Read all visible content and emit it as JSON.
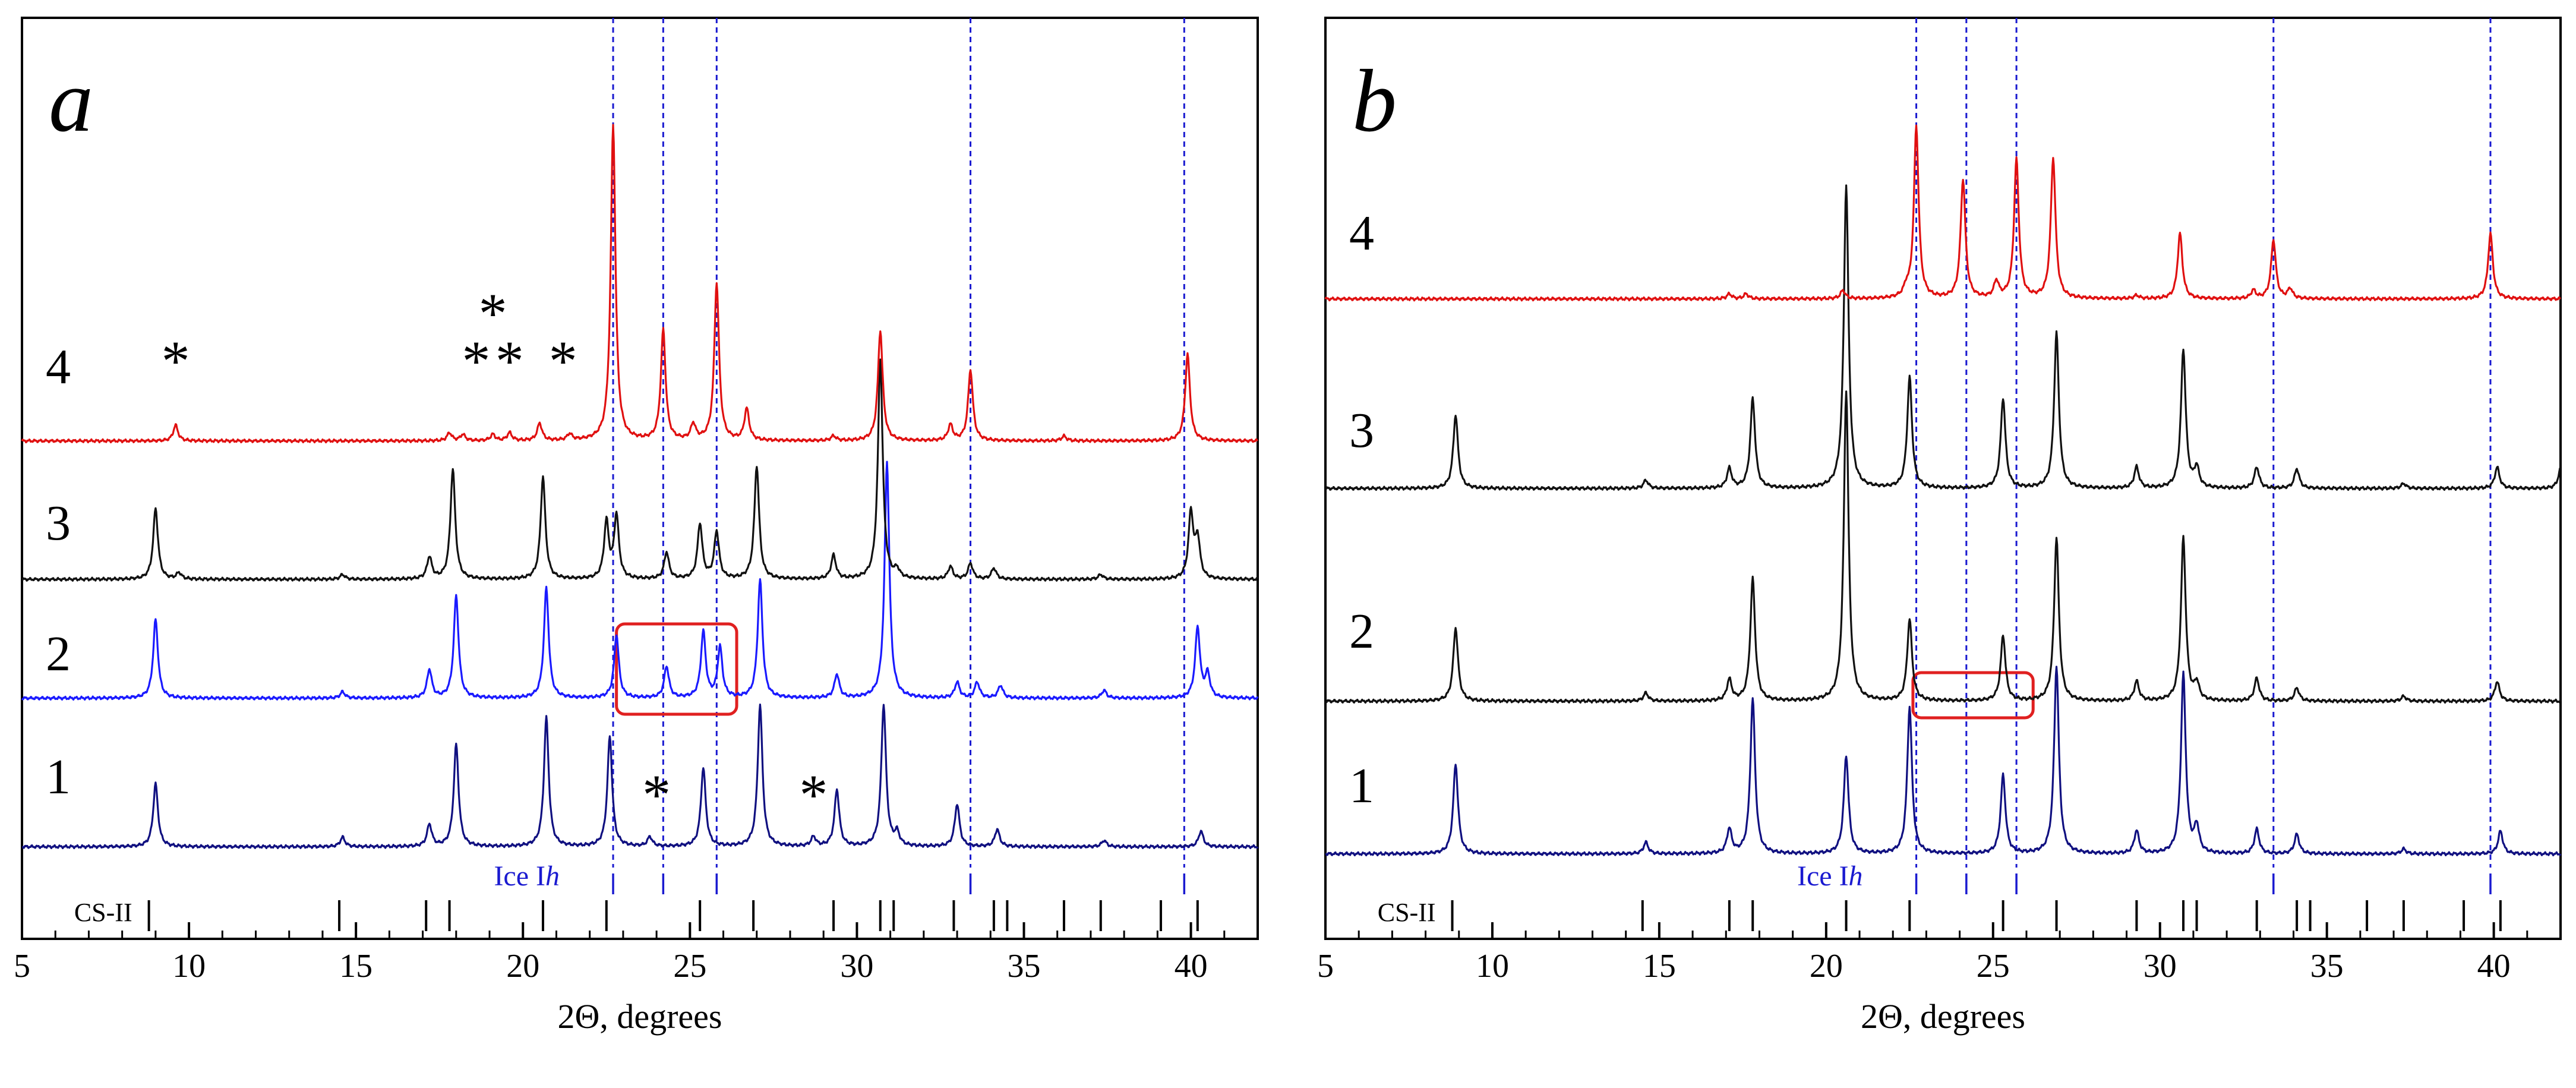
{
  "figure": {
    "axis_title": "2Θ, degrees",
    "x_ticks": [
      5,
      10,
      15,
      20,
      25,
      30,
      35,
      40
    ],
    "ice_label_prefix": "Ice I",
    "ice_label_italic": "h",
    "cs_label": "CS-II",
    "colors": {
      "black": "#111111",
      "blue": "#1a1aff",
      "navy": "#101080",
      "red": "#e01010",
      "ice": "#1a1ad0",
      "highlight": "#e02020"
    }
  },
  "chart_data": [
    {
      "type": "line",
      "panel_label": "a",
      "xlabel": "2Θ, degrees",
      "xlim": [
        5,
        42
      ],
      "ice_ih_reflections": [
        22.7,
        24.2,
        25.8,
        33.4,
        39.8
      ],
      "cs_ii_reflections": [
        8.8,
        14.5,
        17.1,
        17.8,
        20.6,
        22.5,
        25.3,
        26.9,
        29.3,
        30.7,
        31.1,
        32.9,
        34.1,
        34.5,
        36.2,
        37.3,
        39.1,
        40.2
      ],
      "series": [
        {
          "name": "1",
          "color": "navy",
          "peaks": [
            [
              9.0,
              0.4
            ],
            [
              14.6,
              0.06
            ],
            [
              17.2,
              0.14
            ],
            [
              18.0,
              0.65
            ],
            [
              20.7,
              0.82
            ],
            [
              22.6,
              0.7
            ],
            [
              23.8,
              0.06
            ],
            [
              25.4,
              0.5
            ],
            [
              27.1,
              0.9
            ],
            [
              28.7,
              0.06
            ],
            [
              29.4,
              0.36
            ],
            [
              30.8,
              0.9
            ],
            [
              31.2,
              0.08
            ],
            [
              33.0,
              0.27
            ],
            [
              34.2,
              0.11
            ],
            [
              37.4,
              0.04
            ],
            [
              40.3,
              0.1
            ]
          ]
        },
        {
          "name": "2",
          "color": "blue",
          "peaks": [
            [
              9.0,
              0.5
            ],
            [
              14.6,
              0.04
            ],
            [
              17.2,
              0.18
            ],
            [
              18.0,
              0.65
            ],
            [
              20.7,
              0.7
            ],
            [
              22.8,
              0.4
            ],
            [
              24.3,
              0.2
            ],
            [
              25.4,
              0.42
            ],
            [
              25.9,
              0.32
            ],
            [
              27.1,
              0.75
            ],
            [
              29.4,
              0.15
            ],
            [
              30.9,
              1.5
            ],
            [
              33.0,
              0.1
            ],
            [
              33.6,
              0.1
            ],
            [
              34.3,
              0.08
            ],
            [
              37.4,
              0.05
            ],
            [
              40.2,
              0.45
            ],
            [
              40.5,
              0.15
            ]
          ]
        },
        {
          "name": "3",
          "color": "black",
          "peaks": [
            [
              9.0,
              0.45
            ],
            [
              9.7,
              0.04
            ],
            [
              14.6,
              0.03
            ],
            [
              17.2,
              0.14
            ],
            [
              17.9,
              0.7
            ],
            [
              20.6,
              0.65
            ],
            [
              22.5,
              0.36
            ],
            [
              22.8,
              0.4
            ],
            [
              24.3,
              0.17
            ],
            [
              25.3,
              0.35
            ],
            [
              25.8,
              0.3
            ],
            [
              27.0,
              0.72
            ],
            [
              29.3,
              0.15
            ],
            [
              30.7,
              1.4
            ],
            [
              31.2,
              0.05
            ],
            [
              32.8,
              0.08
            ],
            [
              33.4,
              0.1
            ],
            [
              34.1,
              0.07
            ],
            [
              37.3,
              0.03
            ],
            [
              40.0,
              0.42
            ],
            [
              40.2,
              0.25
            ]
          ]
        },
        {
          "name": "4",
          "color": "red",
          "peaks": [
            [
              9.6,
              0.1
            ],
            [
              17.8,
              0.05
            ],
            [
              18.2,
              0.04
            ],
            [
              19.1,
              0.04
            ],
            [
              19.6,
              0.05
            ],
            [
              20.5,
              0.11
            ],
            [
              21.4,
              0.04
            ],
            [
              22.7,
              2.0
            ],
            [
              24.2,
              0.7
            ],
            [
              25.1,
              0.1
            ],
            [
              25.8,
              1.0
            ],
            [
              26.7,
              0.2
            ],
            [
              29.3,
              0.03
            ],
            [
              30.7,
              0.7
            ],
            [
              32.8,
              0.1
            ],
            [
              33.4,
              0.45
            ],
            [
              36.2,
              0.03
            ],
            [
              39.9,
              0.55
            ]
          ]
        }
      ],
      "impurity_markers": [
        {
          "x": 9.6,
          "row": "4"
        },
        {
          "x": 19.1,
          "row": "4-upper"
        },
        {
          "x": 18.6,
          "row": "4"
        },
        {
          "x": 19.6,
          "row": "4"
        },
        {
          "x": 21.2,
          "row": "4"
        },
        {
          "x": 24.0,
          "row": "1"
        },
        {
          "x": 28.7,
          "row": "1"
        }
      ],
      "highlight_range": [
        22.8,
        26.4
      ]
    },
    {
      "type": "line",
      "panel_label": "b",
      "xlabel": "2Θ, degrees",
      "xlim": [
        5,
        42
      ],
      "ice_ih_reflections": [
        22.7,
        24.2,
        25.7,
        33.4,
        39.9
      ],
      "cs_ii_reflections": [
        8.8,
        14.5,
        17.1,
        17.8,
        20.6,
        22.5,
        25.3,
        26.9,
        29.3,
        30.7,
        31.1,
        32.9,
        34.1,
        34.5,
        36.2,
        37.3,
        39.1,
        40.2
      ],
      "series": [
        {
          "name": "1",
          "color": "navy",
          "peaks": [
            [
              8.9,
              0.55
            ],
            [
              14.6,
              0.07
            ],
            [
              17.1,
              0.15
            ],
            [
              17.8,
              0.95
            ],
            [
              20.6,
              0.6
            ],
            [
              22.5,
              0.9
            ],
            [
              25.3,
              0.48
            ],
            [
              26.9,
              1.15
            ],
            [
              29.3,
              0.14
            ],
            [
              30.7,
              1.1
            ],
            [
              31.1,
              0.16
            ],
            [
              32.9,
              0.15
            ],
            [
              34.1,
              0.12
            ],
            [
              37.3,
              0.03
            ],
            [
              40.2,
              0.14
            ]
          ]
        },
        {
          "name": "2",
          "color": "black",
          "peaks": [
            [
              8.9,
              0.45
            ],
            [
              14.6,
              0.05
            ],
            [
              17.1,
              0.13
            ],
            [
              17.8,
              0.75
            ],
            [
              20.6,
              1.9
            ],
            [
              22.5,
              0.5
            ],
            [
              25.3,
              0.4
            ],
            [
              26.9,
              1.0
            ],
            [
              29.3,
              0.12
            ],
            [
              30.7,
              1.0
            ],
            [
              31.1,
              0.1
            ],
            [
              32.9,
              0.14
            ],
            [
              34.1,
              0.08
            ],
            [
              37.3,
              0.03
            ],
            [
              40.1,
              0.12
            ]
          ]
        },
        {
          "name": "3",
          "color": "black",
          "peaks": [
            [
              8.9,
              0.45
            ],
            [
              14.6,
              0.05
            ],
            [
              17.1,
              0.12
            ],
            [
              17.8,
              0.55
            ],
            [
              20.6,
              1.85
            ],
            [
              22.5,
              0.68
            ],
            [
              25.3,
              0.55
            ],
            [
              26.9,
              0.95
            ],
            [
              29.3,
              0.13
            ],
            [
              30.7,
              0.85
            ],
            [
              31.1,
              0.12
            ],
            [
              32.9,
              0.13
            ],
            [
              34.1,
              0.12
            ],
            [
              37.3,
              0.03
            ],
            [
              40.1,
              0.13
            ],
            [
              42.0,
              0.12
            ]
          ]
        },
        {
          "name": "4",
          "color": "red",
          "peaks": [
            [
              17.1,
              0.03
            ],
            [
              17.6,
              0.03
            ],
            [
              20.5,
              0.05
            ],
            [
              22.4,
              0.05
            ],
            [
              22.7,
              1.05
            ],
            [
              24.1,
              0.73
            ],
            [
              25.1,
              0.1
            ],
            [
              25.7,
              0.85
            ],
            [
              26.8,
              0.86
            ],
            [
              29.3,
              0.02
            ],
            [
              30.6,
              0.4
            ],
            [
              32.8,
              0.05
            ],
            [
              33.4,
              0.36
            ],
            [
              33.9,
              0.06
            ],
            [
              39.9,
              0.4
            ]
          ]
        }
      ],
      "impurity_markers": [],
      "highlight_range": [
        22.6,
        26.2
      ]
    }
  ]
}
